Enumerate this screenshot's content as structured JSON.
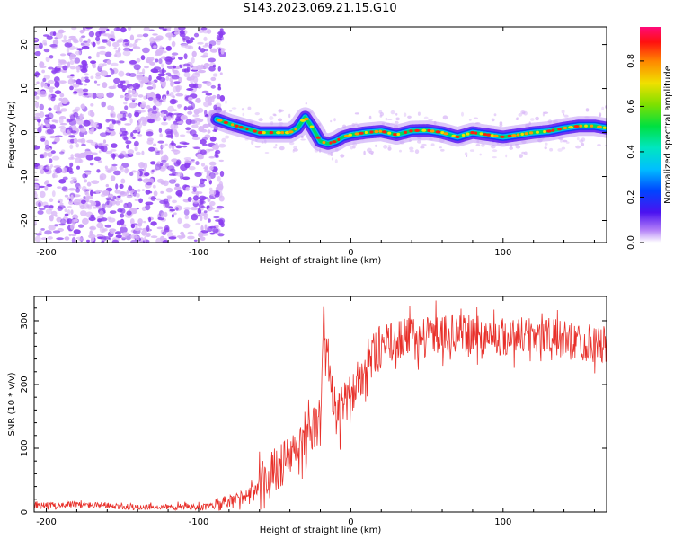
{
  "page_title": "S143.2023.069.21.15.G10",
  "colors": {
    "snr_line": "#e8302a",
    "frame": "#000000",
    "scatter": "#8a3cf0",
    "scatter_light": "#d9b8f7"
  },
  "chart_data": [
    {
      "type": "heatmap",
      "title": "S143.2023.069.21.15.G10",
      "xlabel": "Height of straight line (km)",
      "ylabel": "Frequency (Hz)",
      "xlim": [
        -208,
        168
      ],
      "ylim": [
        -25,
        24
      ],
      "xticks": [
        -200,
        -100,
        0,
        100
      ],
      "yticks": [
        -20,
        -10,
        0,
        10,
        20
      ],
      "colorbar": {
        "label": "Normalized spectral amplitude",
        "range": [
          0,
          0.95
        ],
        "ticks": [
          0.0,
          0.2,
          0.4,
          0.6,
          0.8
        ],
        "tick_labels": [
          "0.0",
          "0.2",
          "0.4",
          "0.6",
          "0.8"
        ]
      },
      "noise_region_x": [
        -208,
        -88
      ],
      "signal_trace": {
        "x": [
          -88,
          -80,
          -70,
          -60,
          -50,
          -40,
          -35,
          -30,
          -25,
          -20,
          -15,
          -10,
          -5,
          0,
          10,
          20,
          30,
          40,
          50,
          60,
          70,
          80,
          90,
          100,
          110,
          120,
          130,
          140,
          150,
          160,
          168
        ],
        "y": [
          3,
          2,
          1,
          0,
          0,
          0,
          1,
          3.5,
          1,
          -2,
          -2.5,
          -2,
          -1,
          -0.5,
          0,
          0.3,
          -0.5,
          0.4,
          0.5,
          0,
          -1,
          0,
          -0.5,
          -1,
          -0.5,
          0,
          0.3,
          1,
          1.5,
          1.5,
          1
        ]
      }
    },
    {
      "type": "line",
      "xlabel": "Height of straight line (km)",
      "ylabel": "SNR (10 * v/v)",
      "xlim": [
        -208,
        168
      ],
      "ylim": [
        0,
        338
      ],
      "xticks": [
        -200,
        -100,
        0,
        100
      ],
      "yticks": [
        0,
        100,
        200,
        300
      ],
      "series": [
        {
          "x": [
            -208,
            -180,
            -150,
            -120,
            -95,
            -80,
            -70,
            -60,
            -50,
            -40,
            -30,
            -20,
            -18,
            -10,
            0,
            10,
            20,
            30,
            40,
            60,
            80,
            100,
            120,
            140,
            160,
            168
          ],
          "y": [
            10,
            12,
            8,
            8,
            8,
            15,
            25,
            40,
            65,
            85,
            110,
            145,
            300,
            150,
            180,
            230,
            260,
            270,
            275,
            280,
            278,
            275,
            280,
            270,
            265,
            260
          ]
        }
      ]
    }
  ]
}
